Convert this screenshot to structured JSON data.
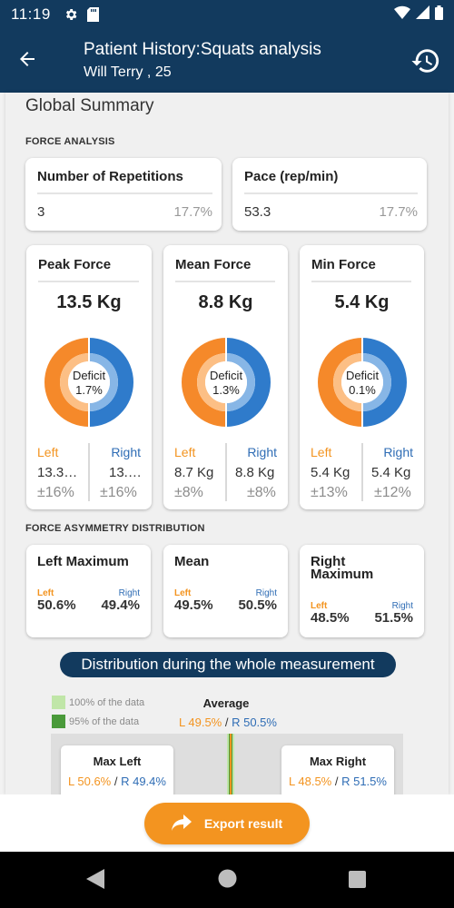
{
  "status_bar": {
    "time": "11:19"
  },
  "app_bar": {
    "title": "Patient History:Squats analysis",
    "subtitle": "Will Terry , 25"
  },
  "summary": {
    "title": "Global Summary",
    "force_analysis_label": "FORCE ANALYSIS",
    "repetitions": {
      "label": "Number of Repetitions",
      "value": "3",
      "pct": "17.7%"
    },
    "pace": {
      "label": "Pace (rep/min)",
      "value": "53.3",
      "pct": "17.7%"
    },
    "forces": [
      {
        "title": "Peak Force",
        "value": "13.5 Kg",
        "deficit_label": "Deficit",
        "deficit": "1.7%",
        "left_label": "Left",
        "right_label": "Right",
        "left_value": "13.3…",
        "right_value": "13.…",
        "left_sd": "±16%",
        "right_sd": "±16%",
        "left_share": 0.5,
        "right_share": 0.5
      },
      {
        "title": "Mean Force",
        "value": "8.8 Kg",
        "deficit_label": "Deficit",
        "deficit": "1.3%",
        "left_label": "Left",
        "right_label": "Right",
        "left_value": "8.7 Kg",
        "right_value": "8.8 Kg",
        "left_sd": "±8%",
        "right_sd": "±8%",
        "left_share": 0.5,
        "right_share": 0.5
      },
      {
        "title": "Min Force",
        "value": "5.4 Kg",
        "deficit_label": "Deficit",
        "deficit": "0.1%",
        "left_label": "Left",
        "right_label": "Right",
        "left_value": "5.4 Kg",
        "right_value": "5.4 Kg",
        "left_sd": "±13%",
        "right_sd": "±12%",
        "left_share": 0.5,
        "right_share": 0.5
      }
    ],
    "asymmetry_label": "FORCE ASYMMETRY DISTRIBUTION",
    "asymmetry": [
      {
        "title": "Left Maximum",
        "left_label": "Left",
        "right_label": "Right",
        "left_value": "50.6%",
        "right_value": "49.4%"
      },
      {
        "title": "Mean",
        "left_label": "Left",
        "right_label": "Right",
        "left_value": "49.5%",
        "right_value": "50.5%"
      },
      {
        "title": "Right Maximum",
        "left_label": "Left",
        "right_label": "Right",
        "left_value": "48.5%",
        "right_value": "51.5%"
      }
    ],
    "distribution": {
      "title": "Distribution during the whole measurement",
      "legend_100": "100% of the data",
      "legend_95": "95% of the data",
      "average_title": "Average",
      "average_left": "L 49.5%",
      "average_sep": " / ",
      "average_right": "R 50.5%",
      "max_left_title": "Max Left",
      "max_left_l": "L 50.6%",
      "max_left_sep": " / ",
      "max_left_r": "R 49.4%",
      "max_right_title": "Max Right",
      "max_right_l": "L 48.5%",
      "max_right_sep": " / ",
      "max_right_r": "R 51.5%"
    }
  },
  "export_button": {
    "label": "Export result"
  },
  "colors": {
    "primary": "#123a5e",
    "accent": "#f39420",
    "left": "#f39420",
    "right": "#2f6db5",
    "legend_100": "#c0e6a8",
    "legend_95": "#4a9a3a"
  }
}
